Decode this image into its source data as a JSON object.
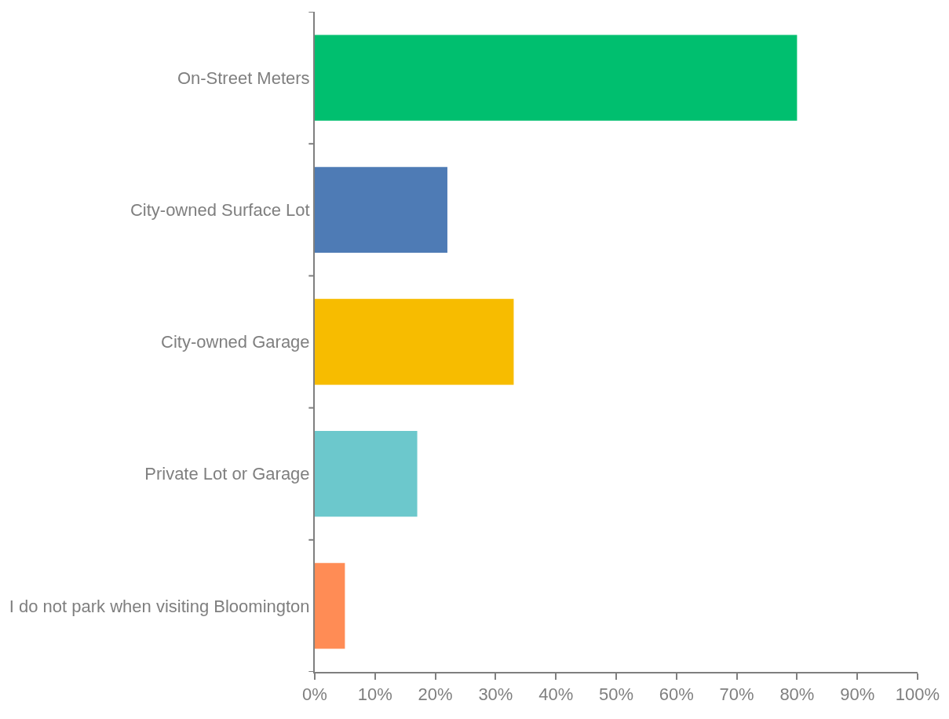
{
  "chart_data": {
    "type": "bar",
    "orientation": "horizontal",
    "categories": [
      "On-Street Meters",
      "City-owned Surface Lot",
      "City-owned Garage",
      "Private Lot or Garage",
      "I do not park when visiting Bloomington"
    ],
    "values": [
      80,
      22,
      33,
      17,
      5
    ],
    "colors": [
      "#00bf6f",
      "#4e7bb5",
      "#f7bc00",
      "#6cc8cc",
      "#ff8c55"
    ],
    "xlim": [
      0,
      100
    ],
    "xticks": [
      {
        "value": 0,
        "label": "0%"
      },
      {
        "value": 10,
        "label": "10%"
      },
      {
        "value": 20,
        "label": "20%"
      },
      {
        "value": 30,
        "label": "30%"
      },
      {
        "value": 40,
        "label": "40%"
      },
      {
        "value": 50,
        "label": "50%"
      },
      {
        "value": 60,
        "label": "60%"
      },
      {
        "value": 70,
        "label": "70%"
      },
      {
        "value": 80,
        "label": "80%"
      },
      {
        "value": 90,
        "label": "90%"
      },
      {
        "value": 100,
        "label": "100%"
      }
    ],
    "legend": false
  }
}
